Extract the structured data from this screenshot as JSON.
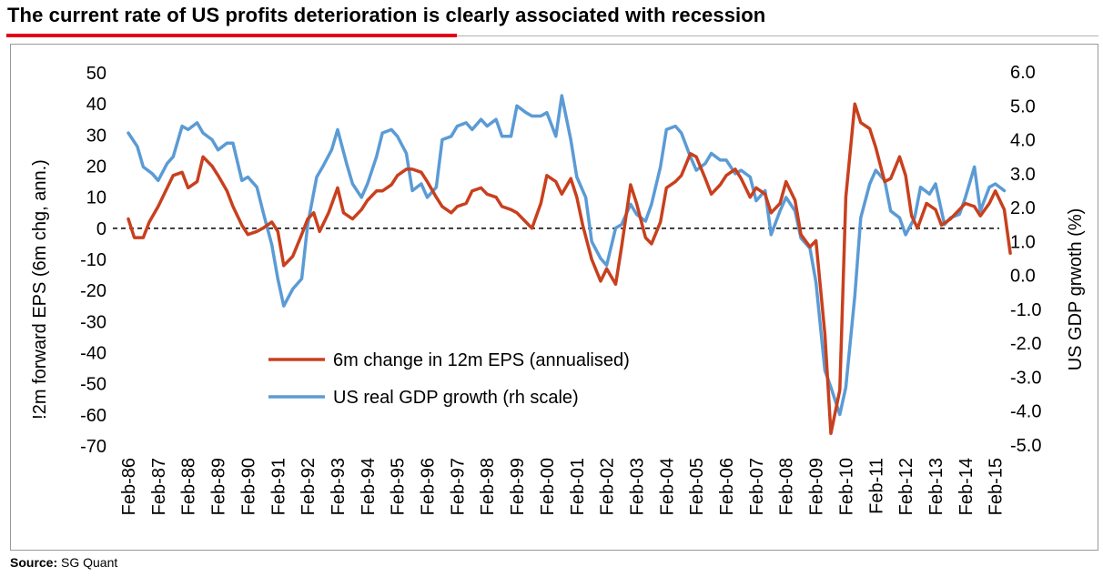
{
  "page": {
    "title": "The current rate of US profits deterioration is clearly associated with recession",
    "source_label": "Source:",
    "source_text": "SG Quant",
    "colors": {
      "title_rule": "#e2001a",
      "eps_line": "#c8401e",
      "gdp_line": "#5b9bd5"
    }
  },
  "chart_data": {
    "type": "line",
    "title": "The current rate of US profits deterioration is clearly associated with recession",
    "ylabel": "!2m forward EPS (6m chg, ann.)",
    "y2label": "US GDP grwoth (%)",
    "ylim": [
      -70,
      50
    ],
    "y2lim": [
      -5.0,
      6.0
    ],
    "yticks": [
      "50",
      "40",
      "30",
      "20",
      "10",
      "0",
      "-10",
      "-20",
      "-30",
      "-40",
      "-50",
      "-60",
      "-70"
    ],
    "y2ticks": [
      "6.0",
      "5.0",
      "4.0",
      "3.0",
      "2.0",
      "1.0",
      "0.0",
      "-1.0",
      "-2.0",
      "-3.0",
      "-4.0",
      "-5.0"
    ],
    "xticks": [
      "Feb-86",
      "Feb-87",
      "Feb-88",
      "Feb-89",
      "Feb-90",
      "Feb-91",
      "Feb-92",
      "Feb-93",
      "Feb-94",
      "Feb-95",
      "Feb-96",
      "Feb-97",
      "Feb-98",
      "Feb-99",
      "Feb-00",
      "Feb-01",
      "Feb-02",
      "Feb-03",
      "Feb-04",
      "Feb-05",
      "Feb-06",
      "Feb-07",
      "Feb-08",
      "Feb-09",
      "Feb-10",
      "Feb-11",
      "Feb-12",
      "Feb-13",
      "Feb-14",
      "Feb-15"
    ],
    "zero_line": "dashed",
    "grid": false,
    "legend_position": "center-left",
    "series": [
      {
        "name": "6m change in 12m EPS (annualised)",
        "axis": "left",
        "color": "#c8401e",
        "points": [
          [
            1986.1,
            3
          ],
          [
            1986.3,
            -3
          ],
          [
            1986.6,
            -3
          ],
          [
            1986.8,
            2
          ],
          [
            1987.1,
            7
          ],
          [
            1987.4,
            13
          ],
          [
            1987.6,
            17
          ],
          [
            1987.9,
            18
          ],
          [
            1988.1,
            13
          ],
          [
            1988.4,
            15
          ],
          [
            1988.6,
            23
          ],
          [
            1988.9,
            20
          ],
          [
            1989.1,
            17
          ],
          [
            1989.4,
            12
          ],
          [
            1989.6,
            7
          ],
          [
            1989.9,
            1
          ],
          [
            1990.1,
            -2
          ],
          [
            1990.4,
            -1
          ],
          [
            1990.6,
            0
          ],
          [
            1990.9,
            2
          ],
          [
            1991.1,
            -1
          ],
          [
            1991.3,
            -12
          ],
          [
            1991.6,
            -9
          ],
          [
            1991.9,
            -2
          ],
          [
            1992.1,
            3
          ],
          [
            1992.3,
            5
          ],
          [
            1992.5,
            -1
          ],
          [
            1992.8,
            5
          ],
          [
            1993.1,
            13
          ],
          [
            1993.3,
            5
          ],
          [
            1993.6,
            3
          ],
          [
            1993.9,
            6
          ],
          [
            1994.1,
            9
          ],
          [
            1994.4,
            12
          ],
          [
            1994.6,
            12
          ],
          [
            1994.9,
            14
          ],
          [
            1995.1,
            17
          ],
          [
            1995.4,
            19
          ],
          [
            1995.6,
            19
          ],
          [
            1995.9,
            18
          ],
          [
            1996.1,
            15
          ],
          [
            1996.4,
            10
          ],
          [
            1996.6,
            7
          ],
          [
            1996.9,
            5
          ],
          [
            1997.1,
            7
          ],
          [
            1997.4,
            8
          ],
          [
            1997.6,
            12
          ],
          [
            1997.9,
            13
          ],
          [
            1998.1,
            11
          ],
          [
            1998.4,
            10
          ],
          [
            1998.6,
            7
          ],
          [
            1998.9,
            6
          ],
          [
            1999.1,
            5
          ],
          [
            1999.4,
            2
          ],
          [
            1999.6,
            0
          ],
          [
            1999.9,
            8
          ],
          [
            2000.1,
            17
          ],
          [
            2000.4,
            15
          ],
          [
            2000.6,
            11
          ],
          [
            2000.9,
            16
          ],
          [
            2001.1,
            10
          ],
          [
            2001.3,
            1
          ],
          [
            2001.6,
            -10
          ],
          [
            2001.9,
            -17
          ],
          [
            2002.1,
            -13
          ],
          [
            2002.4,
            -18
          ],
          [
            2002.6,
            -6
          ],
          [
            2002.9,
            14
          ],
          [
            2003.1,
            8
          ],
          [
            2003.4,
            -3
          ],
          [
            2003.6,
            -5
          ],
          [
            2003.9,
            2
          ],
          [
            2004.1,
            13
          ],
          [
            2004.4,
            15
          ],
          [
            2004.6,
            17
          ],
          [
            2004.9,
            24
          ],
          [
            2005.1,
            23
          ],
          [
            2005.4,
            16
          ],
          [
            2005.6,
            11
          ],
          [
            2005.9,
            14
          ],
          [
            2006.1,
            17
          ],
          [
            2006.4,
            19
          ],
          [
            2006.6,
            16
          ],
          [
            2006.9,
            10
          ],
          [
            2007.1,
            13
          ],
          [
            2007.4,
            11
          ],
          [
            2007.6,
            5
          ],
          [
            2007.9,
            8
          ],
          [
            2008.1,
            15
          ],
          [
            2008.4,
            9
          ],
          [
            2008.6,
            -2
          ],
          [
            2008.9,
            -6
          ],
          [
            2009.1,
            -4
          ],
          [
            2009.4,
            -34
          ],
          [
            2009.6,
            -66
          ],
          [
            2009.9,
            -52
          ],
          [
            2010.1,
            10
          ],
          [
            2010.4,
            40
          ],
          [
            2010.6,
            34
          ],
          [
            2010.9,
            32
          ],
          [
            2011.1,
            26
          ],
          [
            2011.4,
            15
          ],
          [
            2011.6,
            16
          ],
          [
            2011.9,
            23
          ],
          [
            2012.1,
            17
          ],
          [
            2012.3,
            4
          ],
          [
            2012.5,
            0
          ],
          [
            2012.8,
            8
          ],
          [
            2013.1,
            6
          ],
          [
            2013.3,
            1
          ],
          [
            2013.6,
            3
          ],
          [
            2013.9,
            6
          ],
          [
            2014.1,
            8
          ],
          [
            2014.4,
            7
          ],
          [
            2014.6,
            4
          ],
          [
            2014.9,
            8
          ],
          [
            2015.1,
            12
          ],
          [
            2015.4,
            6
          ],
          [
            2015.6,
            -8
          ]
        ]
      },
      {
        "name": "US real GDP growth (rh scale)",
        "axis": "right",
        "color": "#5b9bd5",
        "points": [
          [
            1986.1,
            4.2
          ],
          [
            1986.4,
            3.8
          ],
          [
            1986.6,
            3.2
          ],
          [
            1986.9,
            3.0
          ],
          [
            1987.1,
            2.8
          ],
          [
            1987.4,
            3.3
          ],
          [
            1987.6,
            3.5
          ],
          [
            1987.9,
            4.4
          ],
          [
            1988.1,
            4.3
          ],
          [
            1988.4,
            4.5
          ],
          [
            1988.6,
            4.2
          ],
          [
            1988.9,
            4.0
          ],
          [
            1989.1,
            3.7
          ],
          [
            1989.4,
            3.9
          ],
          [
            1989.6,
            3.9
          ],
          [
            1989.9,
            2.8
          ],
          [
            1990.1,
            2.9
          ],
          [
            1990.4,
            2.6
          ],
          [
            1990.6,
            1.9
          ],
          [
            1990.9,
            0.9
          ],
          [
            1991.1,
            -0.1
          ],
          [
            1991.3,
            -0.9
          ],
          [
            1991.6,
            -0.4
          ],
          [
            1991.9,
            -0.1
          ],
          [
            1992.1,
            1.5
          ],
          [
            1992.4,
            2.9
          ],
          [
            1992.6,
            3.2
          ],
          [
            1992.9,
            3.7
          ],
          [
            1993.1,
            4.3
          ],
          [
            1993.4,
            3.3
          ],
          [
            1993.6,
            2.7
          ],
          [
            1993.9,
            2.3
          ],
          [
            1994.1,
            2.7
          ],
          [
            1994.4,
            3.5
          ],
          [
            1994.6,
            4.2
          ],
          [
            1994.9,
            4.3
          ],
          [
            1995.1,
            4.1
          ],
          [
            1995.4,
            3.6
          ],
          [
            1995.6,
            2.5
          ],
          [
            1995.9,
            2.7
          ],
          [
            1996.1,
            2.3
          ],
          [
            1996.4,
            2.6
          ],
          [
            1996.6,
            4.0
          ],
          [
            1996.9,
            4.1
          ],
          [
            1997.1,
            4.4
          ],
          [
            1997.4,
            4.5
          ],
          [
            1997.6,
            4.3
          ],
          [
            1997.9,
            4.6
          ],
          [
            1998.1,
            4.4
          ],
          [
            1998.4,
            4.6
          ],
          [
            1998.6,
            4.1
          ],
          [
            1998.9,
            4.1
          ],
          [
            1999.1,
            5.0
          ],
          [
            1999.4,
            4.8
          ],
          [
            1999.6,
            4.7
          ],
          [
            1999.9,
            4.7
          ],
          [
            2000.1,
            4.8
          ],
          [
            2000.4,
            4.1
          ],
          [
            2000.6,
            5.3
          ],
          [
            2000.9,
            4.0
          ],
          [
            2001.1,
            2.9
          ],
          [
            2001.4,
            2.3
          ],
          [
            2001.6,
            1.0
          ],
          [
            2001.9,
            0.5
          ],
          [
            2002.1,
            0.3
          ],
          [
            2002.4,
            1.4
          ],
          [
            2002.6,
            1.5
          ],
          [
            2002.9,
            2.1
          ],
          [
            2003.1,
            1.8
          ],
          [
            2003.4,
            1.6
          ],
          [
            2003.6,
            2.1
          ],
          [
            2003.9,
            3.2
          ],
          [
            2004.1,
            4.3
          ],
          [
            2004.4,
            4.4
          ],
          [
            2004.6,
            4.2
          ],
          [
            2004.9,
            3.5
          ],
          [
            2005.1,
            3.1
          ],
          [
            2005.4,
            3.3
          ],
          [
            2005.6,
            3.6
          ],
          [
            2005.9,
            3.4
          ],
          [
            2006.1,
            3.4
          ],
          [
            2006.4,
            3.0
          ],
          [
            2006.6,
            3.1
          ],
          [
            2006.9,
            2.9
          ],
          [
            2007.1,
            2.2
          ],
          [
            2007.4,
            2.5
          ],
          [
            2007.6,
            1.2
          ],
          [
            2007.9,
            1.9
          ],
          [
            2008.1,
            2.3
          ],
          [
            2008.4,
            1.9
          ],
          [
            2008.6,
            1.1
          ],
          [
            2008.9,
            0.8
          ],
          [
            2009.1,
            -0.2
          ],
          [
            2009.4,
            -2.8
          ],
          [
            2009.6,
            -3.3
          ],
          [
            2009.9,
            -4.1
          ],
          [
            2010.1,
            -3.3
          ],
          [
            2010.4,
            -0.6
          ],
          [
            2010.6,
            1.7
          ],
          [
            2010.9,
            2.7
          ],
          [
            2011.1,
            3.1
          ],
          [
            2011.4,
            2.8
          ],
          [
            2011.6,
            1.9
          ],
          [
            2011.9,
            1.7
          ],
          [
            2012.1,
            1.2
          ],
          [
            2012.4,
            1.7
          ],
          [
            2012.6,
            2.6
          ],
          [
            2012.9,
            2.4
          ],
          [
            2013.1,
            2.7
          ],
          [
            2013.4,
            1.5
          ],
          [
            2013.6,
            1.7
          ],
          [
            2013.9,
            1.8
          ],
          [
            2014.1,
            2.3
          ],
          [
            2014.4,
            3.2
          ],
          [
            2014.6,
            1.9
          ],
          [
            2014.9,
            2.6
          ],
          [
            2015.1,
            2.7
          ],
          [
            2015.4,
            2.5
          ]
        ]
      }
    ]
  }
}
